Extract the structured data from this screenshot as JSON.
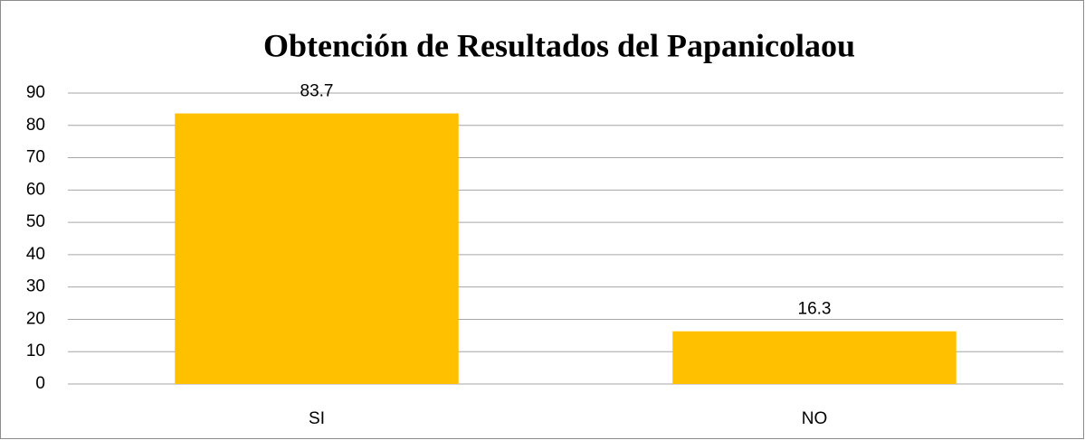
{
  "chart_data": {
    "type": "bar",
    "title": "Obtención de Resultados del Papanicolaou",
    "categories": [
      "SI",
      "NO"
    ],
    "values": [
      83.7,
      16.3
    ],
    "color": "#ffc000",
    "ylim": [
      0,
      90
    ],
    "yticks": [
      0,
      10,
      20,
      30,
      40,
      50,
      60,
      70,
      80,
      90
    ],
    "grid": true
  }
}
